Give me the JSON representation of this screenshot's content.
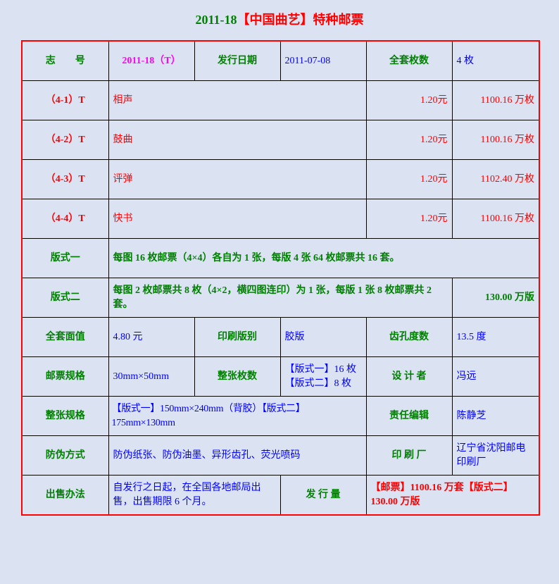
{
  "title": {
    "number": "2011-18",
    "name": "【中国曲艺】特种邮票"
  },
  "colors": {
    "label": "#008000",
    "value": "#0000ff",
    "stamp": "#ff0000",
    "code": "#ff00ff",
    "border": "#ff0000",
    "background": "#dbe3f3"
  },
  "header": {
    "code_label": "志　　号",
    "code_value": "2011-18（T）",
    "date_label": "发行日期",
    "date_value": "2011-07-08",
    "count_label": "全套枚数",
    "count_value": "4 枚"
  },
  "stamps": [
    {
      "id": "（4-1）T",
      "name": "相声",
      "face": "1.20元",
      "issue": "1100.16 万枚"
    },
    {
      "id": "（4-2）T",
      "name": "鼓曲",
      "face": "1.20元",
      "issue": "1100.16 万枚"
    },
    {
      "id": "（4-3）T",
      "name": "评弹",
      "face": "1.20元",
      "issue": "1102.40 万枚"
    },
    {
      "id": "（4-4）T",
      "name": "快书",
      "face": "1.20元",
      "issue": "1100.16 万枚"
    }
  ],
  "sheet1": {
    "label": "版式一",
    "text": "每图 16 枚邮票（4×4）各自为 1 张，每版 4 张 64 枚邮票共 16 套。"
  },
  "sheet2": {
    "label": "版式二",
    "text": "每图 2 枚邮票共 8 枚（4×2，横四图连印）为 1 张，每版 1 张 8 枚邮票共 2 套。",
    "issue": "130.00 万版"
  },
  "details": {
    "face_total_label": "全套面值",
    "face_total_value": "4.80 元",
    "print_label": "印刷版别",
    "print_value": "胶版",
    "perf_label": "齿孔度数",
    "perf_value": "13.5 度",
    "size_label": "邮票规格",
    "size_value": "30mm×50mm",
    "sheet_count_label": "整张枚数",
    "sheet_count_1": "【版式一】16 枚",
    "sheet_count_2": "【版式二】8 枚",
    "designer_label": "设 计 者",
    "designer_value": "冯远",
    "sheet_size_label": "整张规格",
    "sheet_size_value": "【版式一】150mm×240mm（背胶）【版式二】175mm×130mm",
    "editor_label": "责任编辑",
    "editor_value": "陈静芝",
    "security_label": "防伪方式",
    "security_value": "防伪纸张、防伪油墨、异形齿孔、荧光喷码",
    "printer_label": "印 刷 厂",
    "printer_value": "辽宁省沈阳邮电印刷厂",
    "sale_label": "出售办法",
    "sale_value": "自发行之日起，在全国各地邮局出售，出售期限 6 个月。",
    "volume_label": "发 行 量",
    "volume_value": "【邮票】1100.16 万套【版式二】130.00 万版"
  }
}
